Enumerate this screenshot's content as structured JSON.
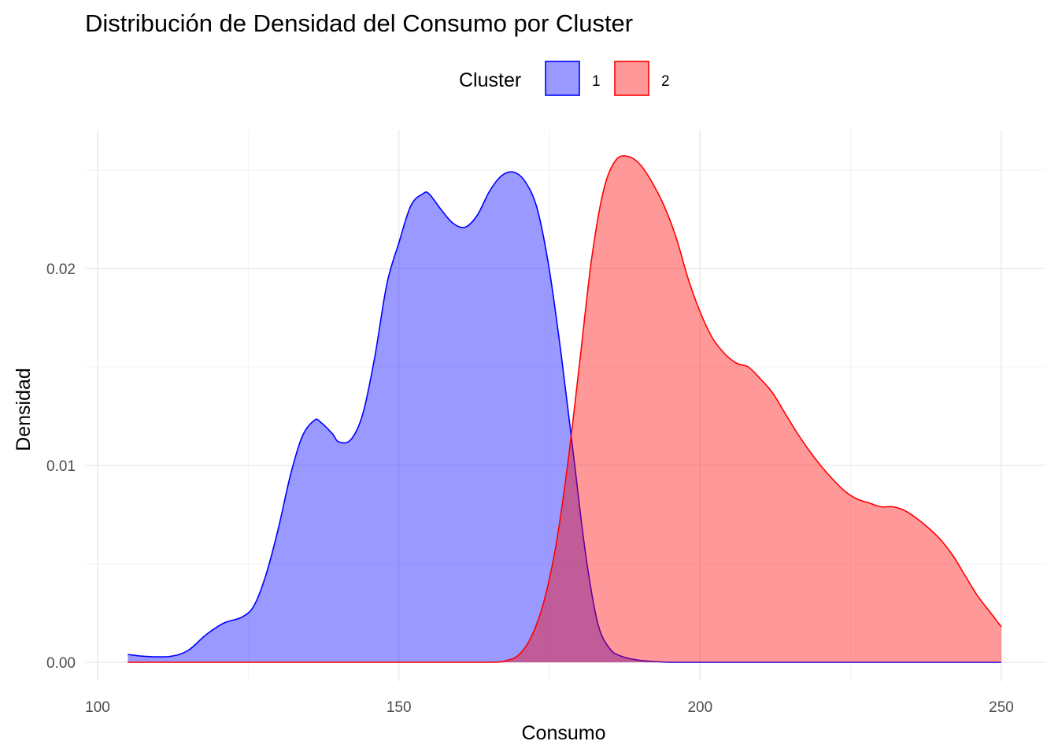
{
  "chart_data": {
    "type": "area",
    "title": "Distribución de Densidad del Consumo por Cluster",
    "xlabel": "Consumo",
    "ylabel": "Densidad",
    "xlim": [
      100,
      250
    ],
    "ylim": [
      0,
      0.025
    ],
    "x_ticks": [
      {
        "value": 100,
        "label": "100"
      },
      {
        "value": 150,
        "label": "150"
      },
      {
        "value": 200,
        "label": "200"
      },
      {
        "value": 250,
        "label": "250"
      }
    ],
    "y_ticks": [
      {
        "value": 0,
        "label": "0.00"
      },
      {
        "value": 0.01,
        "label": "0.01"
      },
      {
        "value": 0.02,
        "label": "0.02"
      }
    ],
    "legend": {
      "title": "Cluster",
      "position": "top"
    },
    "grid": true,
    "series": [
      {
        "name": "1",
        "fill": "#9999ff",
        "stroke": "#0000ff",
        "points": [
          [
            105,
            0.0004
          ],
          [
            108,
            0.0003
          ],
          [
            112,
            0.0003
          ],
          [
            115,
            0.0006
          ],
          [
            118,
            0.0014
          ],
          [
            121,
            0.002
          ],
          [
            124,
            0.0023
          ],
          [
            126,
            0.0029
          ],
          [
            128,
            0.0045
          ],
          [
            130,
            0.0068
          ],
          [
            132,
            0.0095
          ],
          [
            134,
            0.0115
          ],
          [
            136,
            0.0123
          ],
          [
            137,
            0.0122
          ],
          [
            139,
            0.0116
          ],
          [
            140,
            0.0112
          ],
          [
            142,
            0.0113
          ],
          [
            144,
            0.0126
          ],
          [
            146,
            0.0155
          ],
          [
            148,
            0.0192
          ],
          [
            150,
            0.0213
          ],
          [
            152,
            0.0232
          ],
          [
            154,
            0.0238
          ],
          [
            155,
            0.0238
          ],
          [
            157,
            0.023
          ],
          [
            159,
            0.0223
          ],
          [
            161,
            0.0221
          ],
          [
            163,
            0.0227
          ],
          [
            165,
            0.0239
          ],
          [
            167,
            0.0247
          ],
          [
            169,
            0.0249
          ],
          [
            171,
            0.0244
          ],
          [
            173,
            0.023
          ],
          [
            175,
            0.0199
          ],
          [
            177,
            0.0155
          ],
          [
            179,
            0.0105
          ],
          [
            181,
            0.0055
          ],
          [
            183,
            0.002
          ],
          [
            185,
            0.0007
          ],
          [
            187,
            0.0003
          ],
          [
            190,
            0.0001
          ],
          [
            195,
            0.0
          ],
          [
            200,
            0.0
          ],
          [
            210,
            0.0
          ],
          [
            220,
            0.0
          ],
          [
            230,
            0.0
          ],
          [
            240,
            0.0
          ],
          [
            250,
            0.0
          ]
        ]
      },
      {
        "name": "2",
        "fill": "#ff9999",
        "stroke": "#ff0000",
        "points": [
          [
            105,
            0.0
          ],
          [
            150,
            0.0
          ],
          [
            165,
            0.0
          ],
          [
            168,
            0.0001
          ],
          [
            170,
            0.0004
          ],
          [
            172,
            0.0013
          ],
          [
            174,
            0.003
          ],
          [
            176,
            0.0058
          ],
          [
            178,
            0.01
          ],
          [
            180,
            0.0152
          ],
          [
            182,
            0.0205
          ],
          [
            184,
            0.024
          ],
          [
            186,
            0.0255
          ],
          [
            188,
            0.0257
          ],
          [
            190,
            0.0253
          ],
          [
            192,
            0.0244
          ],
          [
            194,
            0.0232
          ],
          [
            196,
            0.0216
          ],
          [
            198,
            0.0195
          ],
          [
            200,
            0.0178
          ],
          [
            202,
            0.0165
          ],
          [
            204,
            0.0157
          ],
          [
            206,
            0.0152
          ],
          [
            208,
            0.015
          ],
          [
            210,
            0.0144
          ],
          [
            212,
            0.0137
          ],
          [
            214,
            0.0127
          ],
          [
            216,
            0.0117
          ],
          [
            218,
            0.0108
          ],
          [
            220,
            0.01
          ],
          [
            222,
            0.0093
          ],
          [
            224,
            0.0087
          ],
          [
            226,
            0.0083
          ],
          [
            228,
            0.0081
          ],
          [
            230,
            0.0079
          ],
          [
            232,
            0.0079
          ],
          [
            234,
            0.0077
          ],
          [
            236,
            0.0073
          ],
          [
            238,
            0.0068
          ],
          [
            240,
            0.0062
          ],
          [
            242,
            0.0054
          ],
          [
            244,
            0.0044
          ],
          [
            246,
            0.0034
          ],
          [
            248,
            0.0026
          ],
          [
            250,
            0.0018
          ]
        ]
      }
    ]
  }
}
